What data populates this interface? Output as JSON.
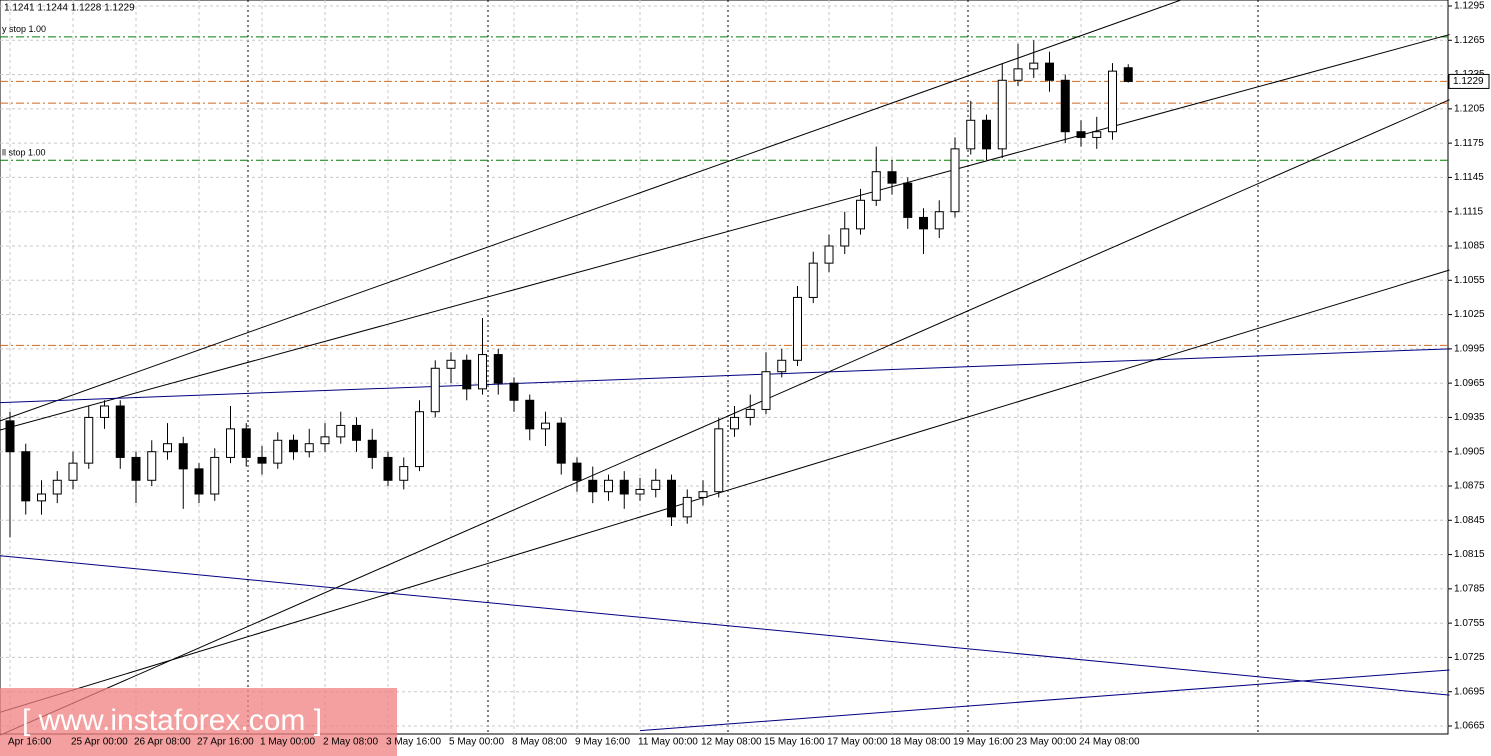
{
  "chart_data": {
    "type": "candlestick",
    "header": "1.1241 1.1244 1.1228 1.1229",
    "watermark": "[ www.instaforex.com ]",
    "categories": [
      "Apr 16:00",
      null,
      null,
      null,
      "25 Apr 00:00",
      null,
      null,
      null,
      "26 Apr 08:00",
      null,
      null,
      null,
      "27 Apr 16:00",
      null,
      null,
      null,
      "1 May 00:00",
      null,
      null,
      null,
      "2 May 08:00",
      null,
      null,
      null,
      "3 May 16:00",
      null,
      null,
      null,
      "5 May 00:00",
      null,
      null,
      null,
      "8 May 08:00",
      null,
      null,
      null,
      "9 May 16:00",
      null,
      null,
      null,
      "11 May 00:00",
      null,
      null,
      null,
      "12 May 08:00",
      null,
      null,
      null,
      "15 May 16:00",
      null,
      null,
      null,
      "17 May 00:00",
      null,
      null,
      null,
      "18 May 08:00",
      null,
      null,
      null,
      "19 May 16:00",
      null,
      null,
      null,
      "23 May 00:00",
      null,
      null,
      null,
      "24 May 08:00",
      null,
      null,
      null
    ],
    "open": [
      1.0932,
      1.0905,
      1.0862,
      1.0868,
      1.088,
      1.0895,
      1.0935,
      1.0945,
      1.09,
      1.088,
      1.0905,
      1.0912,
      1.089,
      1.0868,
      1.09,
      1.0925,
      1.09,
      1.0895,
      1.0915,
      1.0905,
      1.0912,
      1.0918,
      1.0928,
      1.0915,
      1.09,
      1.088,
      1.0892,
      1.094,
      1.0978,
      1.0985,
      1.096,
      1.099,
      1.0965,
      1.095,
      1.0925,
      1.093,
      1.0895,
      1.088,
      1.087,
      1.088,
      1.0868,
      1.0872,
      1.088,
      1.0848,
      1.0865,
      1.087,
      1.0925,
      1.0935,
      1.0942,
      1.0975,
      1.0985,
      1.104,
      1.107,
      1.1085,
      1.11,
      1.1125,
      1.115,
      1.114,
      1.111,
      1.11,
      1.1115,
      1.117,
      1.1195,
      1.117,
      1.123,
      1.124,
      1.1245,
      1.123,
      1.1185,
      1.118,
      1.1185,
      1.1241
    ],
    "high": [
      1.094,
      1.0912,
      1.088,
      1.0888,
      1.0905,
      1.0945,
      1.095,
      1.095,
      1.0905,
      1.0915,
      1.093,
      1.0918,
      1.0895,
      1.0908,
      1.0945,
      1.093,
      1.091,
      1.0922,
      1.092,
      1.0925,
      1.093,
      1.094,
      1.0935,
      1.0925,
      1.0905,
      1.09,
      1.095,
      1.0985,
      1.0992,
      1.099,
      1.1022,
      1.0995,
      1.097,
      1.0955,
      1.094,
      1.0935,
      1.09,
      1.0892,
      1.0885,
      1.0888,
      1.0882,
      1.089,
      1.0885,
      1.0872,
      1.088,
      1.0935,
      1.0945,
      1.0955,
      1.0992,
      1.0995,
      1.105,
      1.108,
      1.1095,
      1.1115,
      1.1135,
      1.1172,
      1.116,
      1.1145,
      1.1118,
      1.1125,
      1.118,
      1.1212,
      1.12,
      1.1245,
      1.1262,
      1.1265,
      1.1255,
      1.1235,
      1.1195,
      1.1198,
      1.1245,
      1.1244
    ],
    "low": [
      1.083,
      1.085,
      1.085,
      1.086,
      1.0872,
      1.089,
      1.0925,
      1.089,
      1.086,
      1.0875,
      1.0898,
      1.0855,
      1.086,
      1.0862,
      1.0895,
      1.0892,
      1.0885,
      1.089,
      1.0898,
      1.09,
      1.0905,
      1.0912,
      1.0905,
      1.089,
      1.0875,
      1.0872,
      1.0888,
      1.0935,
      1.0965,
      1.095,
      1.0955,
      1.0955,
      1.094,
      1.0915,
      1.091,
      1.0885,
      1.087,
      1.086,
      1.0862,
      1.0855,
      1.0862,
      1.0865,
      1.084,
      1.0842,
      1.0858,
      1.0865,
      1.0918,
      1.0928,
      1.0938,
      1.097,
      1.098,
      1.1035,
      1.1062,
      1.1078,
      1.1095,
      1.112,
      1.113,
      1.11,
      1.1078,
      1.1092,
      1.111,
      1.1165,
      1.116,
      1.1162,
      1.1225,
      1.1232,
      1.122,
      1.1175,
      1.1172,
      1.117,
      1.1178,
      1.1228
    ],
    "close": [
      1.0905,
      1.0862,
      1.0868,
      1.088,
      1.0895,
      1.0935,
      1.0945,
      1.09,
      1.088,
      1.0905,
      1.0912,
      1.089,
      1.0868,
      1.09,
      1.0925,
      1.09,
      1.0895,
      1.0915,
      1.0905,
      1.0912,
      1.0918,
      1.0928,
      1.0915,
      1.09,
      1.088,
      1.0892,
      1.094,
      1.0978,
      1.0985,
      1.096,
      1.099,
      1.0965,
      1.095,
      1.0925,
      1.093,
      1.0895,
      1.088,
      1.087,
      1.088,
      1.0868,
      1.0872,
      1.088,
      1.0848,
      1.0865,
      1.087,
      1.0925,
      1.0935,
      1.0942,
      1.0975,
      1.0985,
      1.104,
      1.107,
      1.1085,
      1.11,
      1.1125,
      1.115,
      1.114,
      1.111,
      1.11,
      1.1115,
      1.117,
      1.1195,
      1.117,
      1.123,
      1.124,
      1.1245,
      1.123,
      1.1185,
      1.118,
      1.1185,
      1.1238,
      1.1229
    ],
    "ylim": [
      1.0665,
      1.1295
    ],
    "yticks": [
      1.0665,
      1.0695,
      1.0725,
      1.0755,
      1.0785,
      1.0815,
      1.0845,
      1.0875,
      1.0905,
      1.0935,
      1.0965,
      1.0995,
      1.1025,
      1.1055,
      1.1085,
      1.1115,
      1.1145,
      1.1175,
      1.1205,
      1.1235,
      1.1265,
      1.1295
    ],
    "grid": true,
    "up_color": "#ffffff",
    "down_color": "#000000",
    "levels": [
      {
        "value": 1.1268,
        "color": "#008000",
        "label": "y stop 1.00"
      },
      {
        "value": 1.116,
        "color": "#008000",
        "label": "ll stop 1.00"
      },
      {
        "value": 1.1229,
        "color": "#d2691e"
      },
      {
        "value": 1.121,
        "color": "#d2691e"
      },
      {
        "value": 1.0998,
        "color": "#d2691e"
      }
    ],
    "trendlines": [
      {
        "x": [
          -0.63,
          74.3
        ],
        "y": [
          1.0932,
          1.13
        ],
        "color": "#000000"
      },
      {
        "x": [
          -0.63,
          91.4
        ],
        "y": [
          1.0924,
          1.127
        ],
        "color": "#000000"
      },
      {
        "x": [
          -0.63,
          91.4
        ],
        "y": [
          1.0948,
          1.0995
        ],
        "color": "#000080"
      },
      {
        "x": [
          -0.63,
          91.4
        ],
        "y": [
          1.0814,
          1.0692
        ],
        "color": "#000080"
      },
      {
        "x": [
          -0.63,
          91.4
        ],
        "y": [
          1.0657,
          1.1213
        ],
        "color": "#000000"
      },
      {
        "x": [
          -0.63,
          91.4
        ],
        "y": [
          1.0677,
          1.1064
        ],
        "color": "#000000"
      },
      {
        "x": [
          40.0,
          91.4
        ],
        "y": [
          1.0661,
          1.0714
        ],
        "color": "#000080"
      }
    ]
  }
}
